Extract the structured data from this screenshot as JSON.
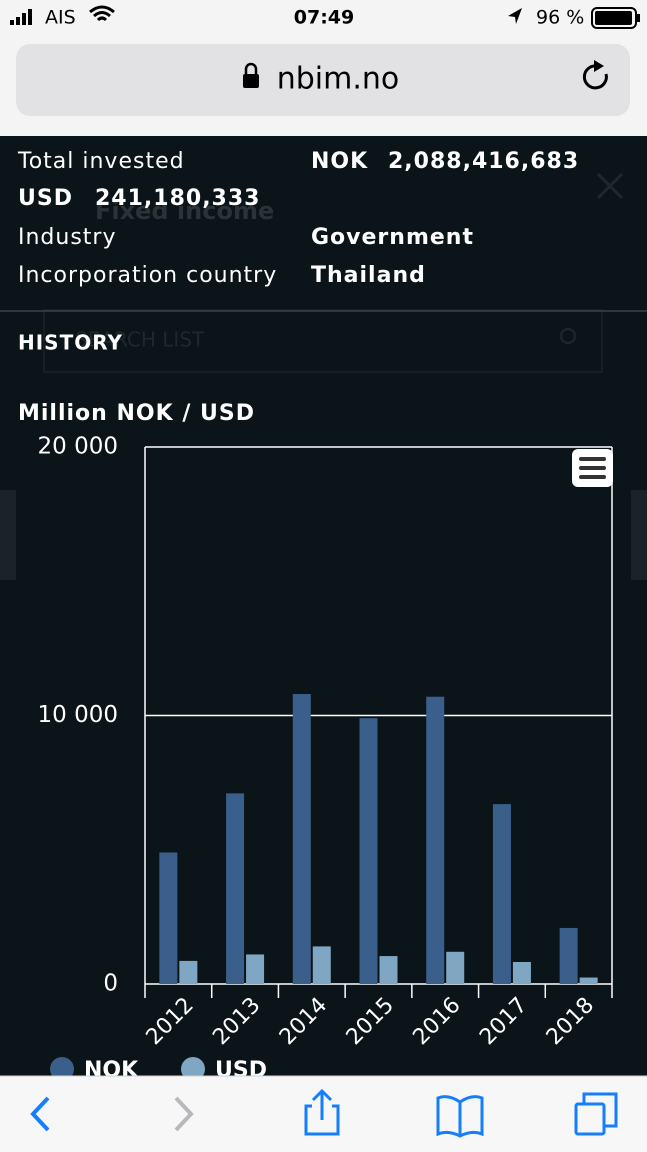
{
  "status_bar": {
    "carrier": "AIS",
    "time": "07:49",
    "battery": "96 %"
  },
  "address_bar": {
    "url": "nbim.no"
  },
  "background": {
    "title": "Fixed income",
    "search_placeholder": "SEARCH LIST"
  },
  "details": {
    "total_invested_label": "Total invested",
    "nok_label": "NOK",
    "nok_value": "2,088,416,683",
    "usd_label": "USD",
    "usd_value": "241,180,333",
    "industry_label": "Industry",
    "industry_value": "Government",
    "country_label": "Incorporation country",
    "country_value": "Thailand"
  },
  "section_title": "HISTORY",
  "chart_data": {
    "type": "bar",
    "title": "Million NOK / USD",
    "categories": [
      "2012",
      "2013",
      "2014",
      "2015",
      "2016",
      "2017",
      "2018"
    ],
    "series": [
      {
        "name": "NOK",
        "color": "#3a5f8a",
        "values": [
          4900,
          7100,
          10800,
          9900,
          10700,
          6700,
          2088
        ]
      },
      {
        "name": "USD",
        "color": "#7fa7c4",
        "values": [
          860,
          1100,
          1400,
          1040,
          1200,
          820,
          241
        ]
      }
    ],
    "ylim": [
      0,
      20000
    ],
    "yticks": [
      0,
      {
        "value": 10000,
        "label": "10 000"
      },
      {
        "value": 20000,
        "label": "20 000"
      }
    ],
    "grid": true
  }
}
